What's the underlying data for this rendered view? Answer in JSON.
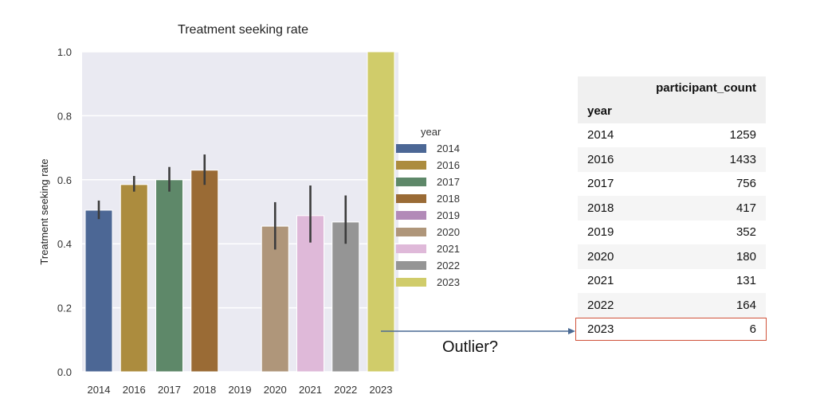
{
  "chart_data": {
    "type": "bar",
    "title": "Treatment seeking rate",
    "xlabel": "",
    "ylabel": "Treatment seeking rate",
    "ylim": [
      0,
      1.0
    ],
    "yticks": [
      "0.0",
      "0.2",
      "0.4",
      "0.6",
      "0.8",
      "1.0"
    ],
    "grid": true,
    "categories": [
      "2014",
      "2016",
      "2017",
      "2018",
      "2019",
      "2020",
      "2021",
      "2022",
      "2023"
    ],
    "values": [
      0.505,
      0.585,
      0.6,
      0.63,
      0,
      0.455,
      0.488,
      0.468,
      1.0
    ],
    "ci_low": [
      0.477,
      0.563,
      0.563,
      0.584,
      null,
      0.382,
      0.404,
      0.4,
      null
    ],
    "ci_high": [
      0.535,
      0.612,
      0.64,
      0.679,
      null,
      0.53,
      0.582,
      0.551,
      null
    ],
    "colors": [
      "#4c6795",
      "#ac8c3e",
      "#5e8869",
      "#9a6b35",
      "#b28ab8",
      "#af967a",
      "#dfb9d9",
      "#959595",
      "#d0cc6a"
    ],
    "legend": {
      "title": "year",
      "placement": "right",
      "entries": [
        "2014",
        "2016",
        "2017",
        "2018",
        "2019",
        "2020",
        "2021",
        "2022",
        "2023"
      ]
    }
  },
  "table": {
    "column_header": "participant_count",
    "index_header": "year",
    "rows": [
      [
        "2014",
        "1259"
      ],
      [
        "2016",
        "1433"
      ],
      [
        "2017",
        "756"
      ],
      [
        "2018",
        "417"
      ],
      [
        "2019",
        "352"
      ],
      [
        "2020",
        "180"
      ],
      [
        "2021",
        "131"
      ],
      [
        "2022",
        "164"
      ],
      [
        "2023",
        "6"
      ]
    ]
  },
  "annotation": {
    "text": "Outlier?",
    "arrow_color": "#4a6a94",
    "highlight_color": "#d0523a"
  }
}
